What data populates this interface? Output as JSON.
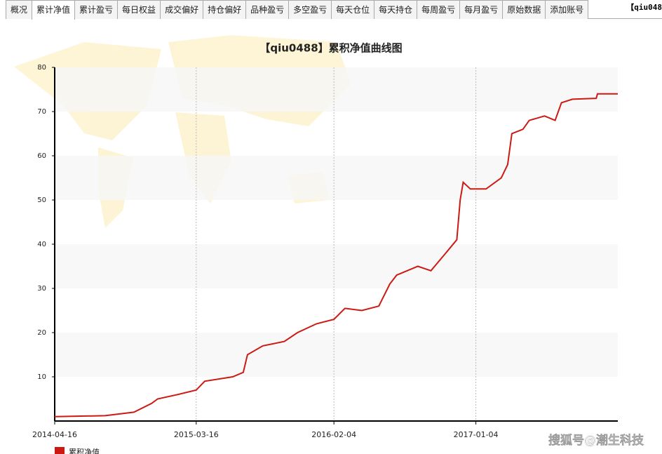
{
  "tabs": [
    "概况",
    "累计净值",
    "累计盈亏",
    "每日权益",
    "成交偏好",
    "持仓偏好",
    "品种盈亏",
    "多空盈亏",
    "每天仓位",
    "每天持仓",
    "每周盈亏",
    "每月盈亏",
    "原始数据",
    "添加账号"
  ],
  "header_right": "【qiu048",
  "watermark": "搜狐号@潮生科技",
  "chart_data": {
    "type": "line",
    "title": "【qiu0488】累积净值曲线图",
    "x": [
      "2014-04-16",
      "2014-08-13",
      "2014-10-20",
      "2014-12-01",
      "2014-12-15",
      "2015-02-01",
      "2015-03-16",
      "2015-04-05",
      "2015-06-10",
      "2015-07-05",
      "2015-07-15",
      "2015-08-20",
      "2015-10-10",
      "2015-11-10",
      "2015-12-25",
      "2016-02-04",
      "2016-03-01",
      "2016-04-10",
      "2016-05-20",
      "2016-06-15",
      "2016-07-01",
      "2016-08-20",
      "2016-09-20",
      "2016-10-25",
      "2016-11-20",
      "2016-11-28",
      "2016-12-05",
      "2016-12-22",
      "2017-01-28",
      "2017-03-05",
      "2017-03-20",
      "2017-03-30",
      "2017-04-25",
      "2017-05-10",
      "2017-06-15",
      "2017-07-10",
      "2017-07-25",
      "2017-08-20",
      "2017-10-15",
      "2017-10-18",
      "2017-12-05"
    ],
    "series": [
      {
        "name": "累积净值",
        "color": "#cc1a12",
        "values": [
          1,
          1.2,
          2,
          4,
          5,
          6,
          7,
          9,
          10,
          11,
          15,
          17,
          18,
          20,
          22,
          23,
          25.5,
          25,
          26,
          31,
          33,
          35,
          34,
          38,
          41,
          50,
          54,
          52.5,
          52.5,
          55,
          58,
          65,
          66,
          68,
          69,
          68,
          72,
          72.8,
          73,
          74,
          74
        ]
      }
    ],
    "xlim": [
      "2014-04-16",
      "2017-12-05"
    ],
    "xticks": [
      "2014-04-16",
      "2015-03-16",
      "2016-02-04",
      "2017-01-04"
    ],
    "ylim": [
      0,
      80
    ],
    "yticks": [
      10,
      20,
      30,
      40,
      50,
      60,
      70,
      80
    ],
    "grid": true
  }
}
